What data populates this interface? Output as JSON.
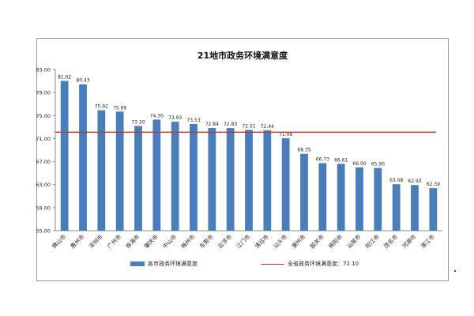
{
  "chart_data": {
    "type": "bar",
    "title": "21地市政务环境满意度",
    "categories": [
      "佛山市",
      "惠州市",
      "深圳市",
      "广州市",
      "珠海市",
      "肇庆市",
      "中山市",
      "梅州市",
      "东莞市",
      "云浮市",
      "江门市",
      "清远市",
      "汕头市",
      "潮州市",
      "韶关市",
      "揭阳市",
      "汕尾市",
      "阳江市",
      "茂名市",
      "河源市",
      "湛江市"
    ],
    "values": [
      81.02,
      80.43,
      75.92,
      75.69,
      73.2,
      74.3,
      73.93,
      73.53,
      72.84,
      72.83,
      72.51,
      72.44,
      71.06,
      68.35,
      66.73,
      66.61,
      66.0,
      65.9,
      63.08,
      62.93,
      62.39
    ],
    "value_labels": [
      "81.02",
      "80.43",
      "75.92",
      "75.69",
      "73.20",
      "74.30",
      "73.93",
      "73.53",
      "72.84",
      "72.83",
      "72.51",
      "72.44",
      "71.06",
      "68.35",
      "66.73",
      "66.61",
      "66.00",
      "65.90",
      "63.08",
      "62.93",
      "62.39"
    ],
    "y_tick_labels": [
      "83.00",
      "79.00",
      "75.00",
      "71.00",
      "67.00",
      "63.00",
      "59.00",
      "55.00"
    ],
    "ylim": [
      55,
      83
    ],
    "reference_line": {
      "value": 72.1
    },
    "legend": {
      "bar_label": "各市政务环境满意度",
      "line_label": "全省政务环境满意度：72.10"
    },
    "colors": {
      "bar": "#4a7ebb",
      "line": "#c0392b"
    }
  }
}
